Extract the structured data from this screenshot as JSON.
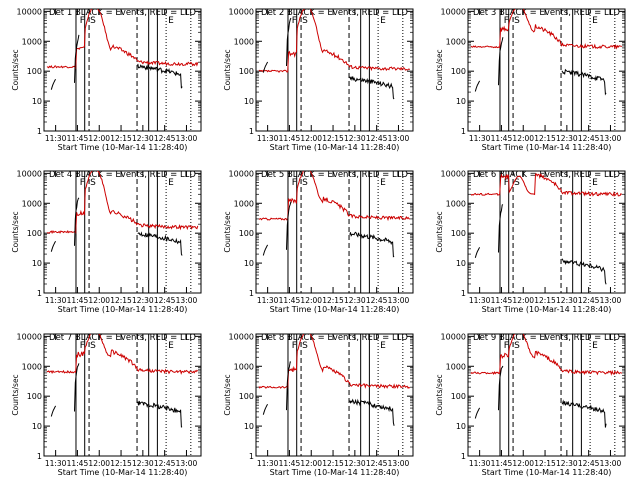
{
  "figure": {
    "xlabel_template": "Start Time ({start})",
    "ylabel": "Counts/sec",
    "start": "10-Mar-14 11:28:40",
    "line_colors": {
      "events": "#000000",
      "lld": "#cc0000"
    }
  },
  "chart_data": [
    {
      "type": "line",
      "title": "Det 1  BLACK = Events, RED = LLD",
      "detector": 1,
      "x_ticks": [
        "11:30",
        "11:45",
        "12:00",
        "12:15",
        "12:30",
        "12:45",
        "13:00"
      ],
      "y_ticks": [
        "1",
        "10",
        "100",
        "1000",
        "10000"
      ],
      "ylim": [
        1,
        12000
      ],
      "yscale": "log",
      "event_baseline": 40,
      "event_late": 150,
      "lld_baseline": 140,
      "lld_late": 175,
      "peak": true,
      "annotations": [
        "F",
        "S",
        "E"
      ]
    },
    {
      "type": "line",
      "title": "Det 2  BLACK = Events, RED = LLD",
      "detector": 2,
      "x_ticks": [
        "11:30",
        "11:45",
        "12:00",
        "12:15",
        "12:30",
        "12:45",
        "13:00"
      ],
      "y_ticks": [
        "1",
        "10",
        "100",
        "1000",
        "10000"
      ],
      "ylim": [
        1,
        12000
      ],
      "yscale": "log",
      "event_baseline": 150,
      "event_late": 60,
      "lld_baseline": 100,
      "lld_late": 120,
      "peak": true,
      "annotations": [
        "F",
        "S",
        "E"
      ]
    },
    {
      "type": "line",
      "title": "Det 3  BLACK = Events, RED = LLD",
      "detector": 3,
      "x_ticks": [
        "11:30",
        "11:45",
        "12:00",
        "12:15",
        "12:30",
        "12:45",
        "13:00"
      ],
      "y_ticks": [
        "1",
        "10",
        "100",
        "1000",
        "10000"
      ],
      "ylim": [
        1,
        12000
      ],
      "yscale": "log",
      "event_baseline": 35,
      "event_late": 100,
      "lld_baseline": 650,
      "lld_late": 650,
      "peak": true,
      "annotations": [
        "F",
        "S",
        "E"
      ]
    },
    {
      "type": "line",
      "title": "Det 4  BLACK = Events, RED = LLD",
      "detector": 4,
      "x_ticks": [
        "11:30",
        "11:45",
        "12:00",
        "12:15",
        "12:30",
        "12:45",
        "13:00"
      ],
      "y_ticks": [
        "1",
        "10",
        "100",
        "1000",
        "10000"
      ],
      "ylim": [
        1,
        12000
      ],
      "yscale": "log",
      "event_baseline": 40,
      "event_late": 100,
      "lld_baseline": 110,
      "lld_late": 160,
      "peak": true,
      "annotations": [
        "F",
        "S",
        "E"
      ]
    },
    {
      "type": "line",
      "title": "Det 5  BLACK = Events, RED = LLD",
      "detector": 5,
      "x_ticks": [
        "11:30",
        "11:45",
        "12:00",
        "12:15",
        "12:30",
        "12:45",
        "13:00"
      ],
      "y_ticks": [
        "1",
        "10",
        "100",
        "1000",
        "10000"
      ],
      "ylim": [
        1,
        12000
      ],
      "yscale": "log",
      "event_baseline": 30,
      "event_late": 100,
      "lld_baseline": 300,
      "lld_late": 320,
      "peak": true,
      "annotations": [
        "F",
        "S",
        "E"
      ]
    },
    {
      "type": "line",
      "title": "Det 6  BLACK = Events, RED = LLD",
      "detector": 6,
      "x_ticks": [
        "11:30",
        "11:45",
        "12:00",
        "12:15",
        "12:30",
        "12:45",
        "13:00"
      ],
      "y_ticks": [
        "1",
        "10",
        "100",
        "1000",
        "10000"
      ],
      "ylim": [
        1,
        12000
      ],
      "yscale": "log",
      "event_baseline": 25,
      "event_late": 12,
      "lld_baseline": 2000,
      "lld_late": 2000,
      "peak": false,
      "annotations": [
        "F",
        "S",
        "E"
      ]
    },
    {
      "type": "line",
      "title": "Det 7  BLACK = Events, RED = LLD",
      "detector": 7,
      "x_ticks": [
        "11:30",
        "11:45",
        "12:00",
        "12:15",
        "12:30",
        "12:45",
        "13:00"
      ],
      "y_ticks": [
        "1",
        "10",
        "100",
        "1000",
        "10000"
      ],
      "ylim": [
        1,
        12000
      ],
      "yscale": "log",
      "event_baseline": 35,
      "event_late": 60,
      "lld_baseline": 650,
      "lld_late": 650,
      "peak": true,
      "annotations": [
        "F",
        "S",
        "E"
      ]
    },
    {
      "type": "line",
      "title": "Det 8  BLACK = Events, RED = LLD",
      "detector": 8,
      "x_ticks": [
        "11:30",
        "11:45",
        "12:00",
        "12:15",
        "12:30",
        "12:45",
        "13:00"
      ],
      "y_ticks": [
        "1",
        "10",
        "100",
        "1000",
        "10000"
      ],
      "ylim": [
        1,
        12000
      ],
      "yscale": "log",
      "event_baseline": 40,
      "event_late": 70,
      "lld_baseline": 200,
      "lld_late": 210,
      "peak": true,
      "annotations": [
        "F",
        "S",
        "E"
      ]
    },
    {
      "type": "line",
      "title": "Det 9  BLACK = Events, RED = LLD",
      "detector": 9,
      "x_ticks": [
        "11:30",
        "11:45",
        "12:00",
        "12:15",
        "12:30",
        "12:45",
        "13:00"
      ],
      "y_ticks": [
        "1",
        "10",
        "100",
        "1000",
        "10000"
      ],
      "ylim": [
        1,
        12000
      ],
      "yscale": "log",
      "event_baseline": 30,
      "event_late": 60,
      "lld_baseline": 600,
      "lld_late": 600,
      "peak": true,
      "annotations": [
        "F",
        "S",
        "E"
      ]
    }
  ]
}
